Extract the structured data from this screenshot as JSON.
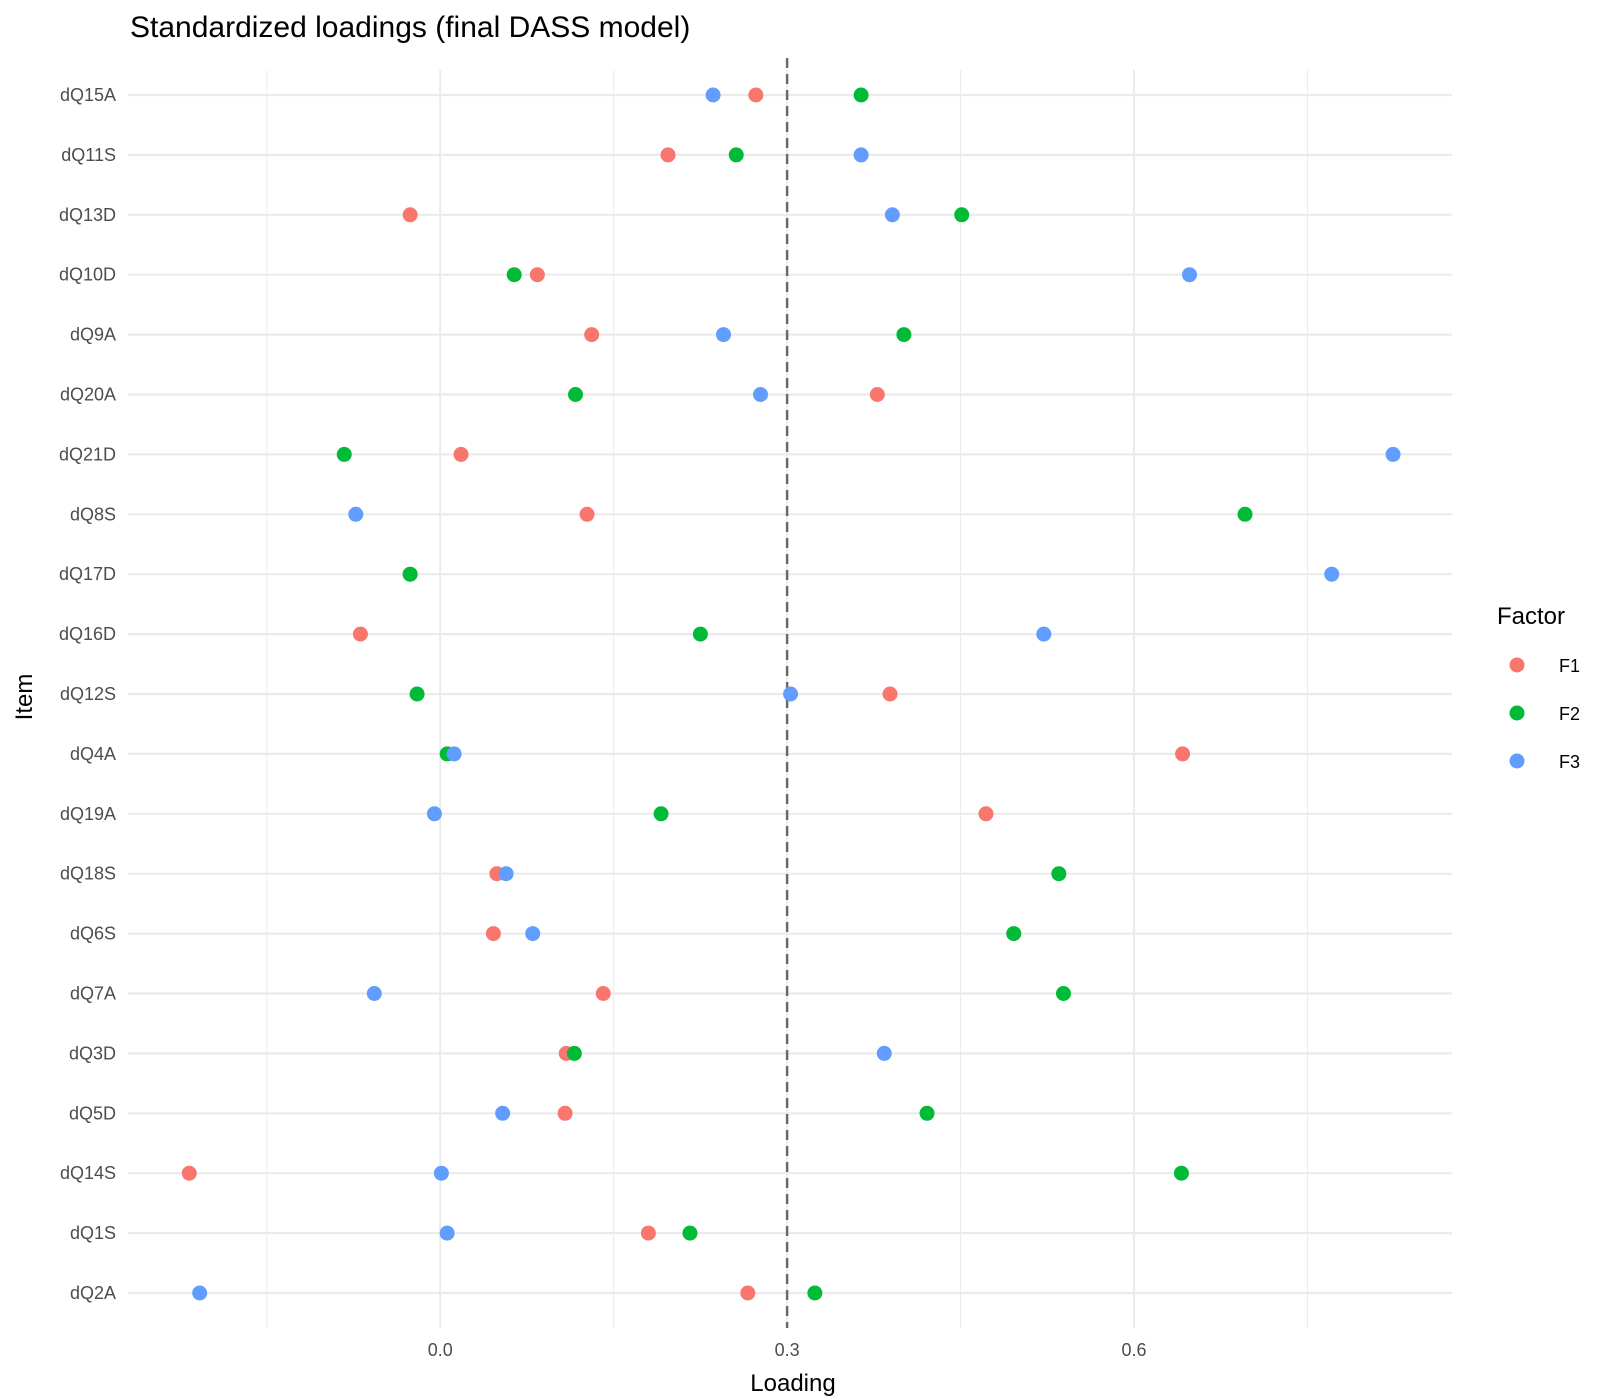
{
  "chart_data": {
    "type": "scatter",
    "title": "Standardized loadings (final DASS model)",
    "xlabel": "Loading",
    "ylabel": "Item",
    "xlim": [
      -0.27,
      0.875
    ],
    "x_ticks": [
      "0.0",
      "0.3",
      "0.6"
    ],
    "x_tick_values": [
      0.0,
      0.3,
      0.6
    ],
    "reference_line": {
      "x": 0.3,
      "style": "dashed"
    },
    "grid": true,
    "legend": {
      "title": "Factor",
      "position": "right"
    },
    "categories": [
      "dQ15A",
      "dQ11S",
      "dQ13D",
      "dQ10D",
      "dQ9A",
      "dQ20A",
      "dQ21D",
      "dQ8S",
      "dQ17D",
      "dQ16D",
      "dQ12S",
      "dQ4A",
      "dQ19A",
      "dQ18S",
      "dQ6S",
      "dQ7A",
      "dQ3D",
      "dQ5D",
      "dQ14S",
      "dQ1S",
      "dQ2A"
    ],
    "series": [
      {
        "name": "F1",
        "color": "#F8766D",
        "values": [
          0.273,
          0.197,
          -0.026,
          0.084,
          0.131,
          0.378,
          0.018,
          0.127,
          -0.026,
          -0.069,
          0.389,
          0.642,
          0.472,
          0.049,
          0.046,
          0.141,
          0.109,
          0.108,
          -0.217,
          0.18,
          0.266
        ]
      },
      {
        "name": "F2",
        "color": "#00BA38",
        "values": [
          0.364,
          0.256,
          0.451,
          0.064,
          0.401,
          0.117,
          -0.083,
          0.696,
          -0.026,
          0.225,
          -0.02,
          0.006,
          0.191,
          0.535,
          0.496,
          0.539,
          0.116,
          0.421,
          0.641,
          0.216,
          0.324
        ]
      },
      {
        "name": "F3",
        "color": "#619CFF",
        "values": [
          0.236,
          0.364,
          0.391,
          0.648,
          0.245,
          0.277,
          0.824,
          -0.073,
          0.771,
          0.522,
          0.303,
          0.012,
          -0.005,
          0.057,
          0.08,
          -0.057,
          0.384,
          0.054,
          0.001,
          0.006,
          -0.208
        ]
      }
    ]
  }
}
